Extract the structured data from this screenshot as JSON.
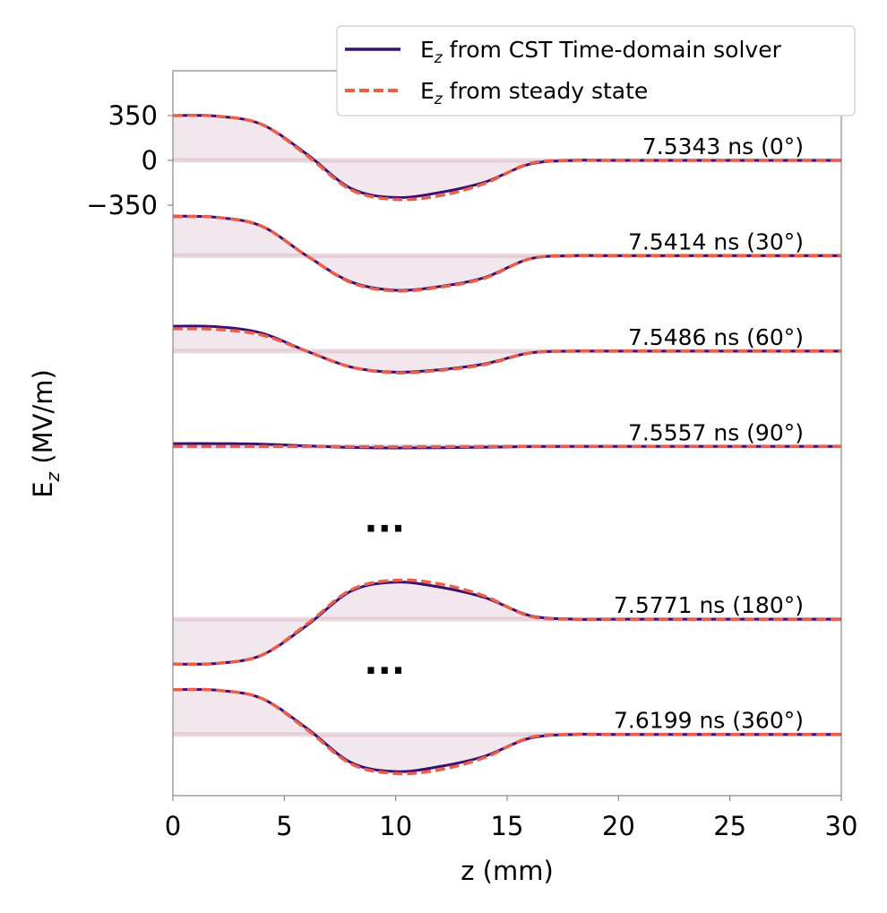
{
  "chart_data": {
    "type": "line",
    "title": "",
    "xlabel": "z (mm)",
    "ylabel": "E_z (MV/m)",
    "xlim": [
      0,
      30
    ],
    "xticks": [
      0,
      5,
      10,
      15,
      20,
      25,
      30
    ],
    "yticks": [
      350,
      0,
      -350
    ],
    "ytick_labels": [
      "350",
      "0",
      "−350"
    ],
    "grid": false,
    "legend_position": "top-right",
    "colors": {
      "solver": "#3b0f6f",
      "steady": "#e8604c",
      "fill": "#ead7e0"
    },
    "series": [
      {
        "name": "E_z from CST Time-domain solver",
        "style": "solid",
        "legend_prefix": "E",
        "legend_sub": "z",
        "legend_suffix": " from CST Time-domain solver"
      },
      {
        "name": "E_z from steady state",
        "style": "dashed",
        "legend_prefix": "E",
        "legend_sub": "z",
        "legend_suffix": " from steady state"
      }
    ],
    "traces": [
      {
        "label": "7.5343 ns (0°)",
        "time_ns": 7.5343,
        "phase_deg": 0,
        "offset": 0,
        "x": [
          0,
          2,
          4,
          6,
          8,
          10,
          12,
          14,
          16,
          18,
          20,
          30
        ],
        "solver": [
          350,
          345,
          280,
          50,
          -220,
          -290,
          -250,
          -170,
          -30,
          0,
          0,
          0
        ],
        "steady": [
          350,
          345,
          280,
          40,
          -230,
          -305,
          -275,
          -180,
          -25,
          0,
          0,
          0
        ]
      },
      {
        "label": "7.5414 ns (30°)",
        "time_ns": 7.5414,
        "phase_deg": 30,
        "offset": -745,
        "x": [
          0,
          2,
          4,
          6,
          8,
          10,
          12,
          14,
          16,
          18,
          20,
          30
        ],
        "solver": [
          310,
          300,
          230,
          0,
          -205,
          -270,
          -240,
          -170,
          -25,
          0,
          0,
          0
        ],
        "steady": [
          305,
          300,
          230,
          0,
          -210,
          -275,
          -245,
          -175,
          -25,
          0,
          0,
          0
        ]
      },
      {
        "label": "7.5486 ns (60°)",
        "time_ns": 7.5486,
        "phase_deg": 60,
        "offset": -1490,
        "x": [
          0,
          2,
          4,
          6,
          8,
          10,
          12,
          14,
          16,
          18,
          20,
          30
        ],
        "solver": [
          195,
          190,
          140,
          0,
          -125,
          -165,
          -145,
          -100,
          -15,
          0,
          0,
          0
        ],
        "steady": [
          175,
          170,
          125,
          0,
          -125,
          -170,
          -150,
          -105,
          -15,
          0,
          0,
          0
        ]
      },
      {
        "label": "7.5557 ns (90°)",
        "time_ns": 7.5557,
        "phase_deg": 90,
        "offset": -2235,
        "x": [
          0,
          2,
          4,
          6,
          8,
          10,
          12,
          14,
          16,
          18,
          20,
          30
        ],
        "solver": [
          22,
          22,
          18,
          5,
          -8,
          -12,
          -10,
          -6,
          -1,
          0,
          0,
          0
        ],
        "steady": [
          0,
          0,
          0,
          0,
          -2,
          -3,
          -2,
          -1,
          0,
          0,
          0,
          0
        ]
      },
      {
        "label": "7.5771 ns (180°)",
        "time_ns": 7.5771,
        "phase_deg": 180,
        "offset": -3585,
        "x": [
          0,
          2,
          4,
          6,
          8,
          10,
          12,
          14,
          16,
          18,
          20,
          30
        ],
        "solver": [
          -350,
          -345,
          -280,
          -50,
          220,
          290,
          250,
          170,
          30,
          0,
          0,
          0
        ],
        "steady": [
          -350,
          -345,
          -280,
          -40,
          230,
          305,
          275,
          180,
          25,
          0,
          0,
          0
        ]
      },
      {
        "label": "7.6199 ns (360°)",
        "time_ns": 7.6199,
        "phase_deg": 360,
        "offset": -4485,
        "x": [
          0,
          2,
          4,
          6,
          8,
          10,
          12,
          14,
          16,
          18,
          20,
          30
        ],
        "solver": [
          350,
          345,
          280,
          50,
          -220,
          -290,
          -250,
          -170,
          -30,
          0,
          0,
          0
        ],
        "steady": [
          350,
          345,
          280,
          40,
          -230,
          -305,
          -275,
          -180,
          -25,
          0,
          0,
          0
        ]
      }
    ],
    "ellipses": [
      {
        "text": "...",
        "x": 9.5,
        "y": -2900
      },
      {
        "text": "...",
        "x": 9.5,
        "y": -4010
      }
    ]
  }
}
